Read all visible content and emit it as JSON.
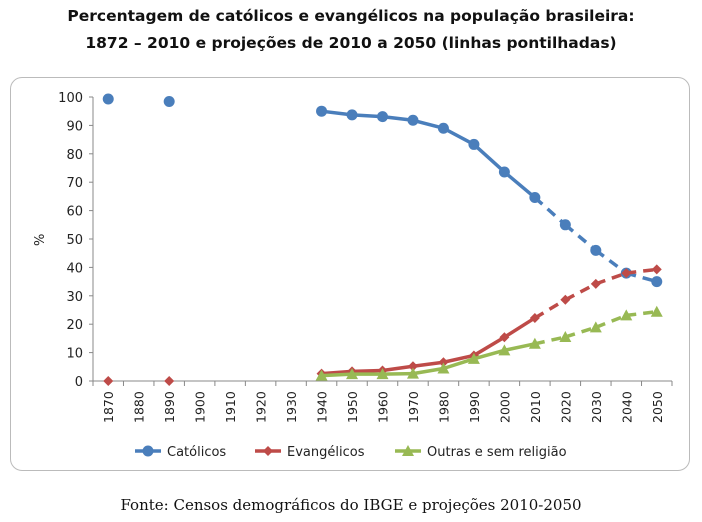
{
  "title_line1": "Percentagem de católicos e evangélicos na população brasileira:",
  "title_line2": "1872 – 2010 e projeções de 2010 a 2050 (linhas pontilhadas)",
  "source": "Fonte: Censos demográficos do IBGE e projeções 2010-2050",
  "chart_data": {
    "type": "line",
    "title": "Percentagem de católicos e evangélicos na população brasileira: 1872 – 2010 e projeções de 2010 a 2050 (linhas pontilhadas)",
    "ylabel": "%",
    "ylim": [
      0,
      100
    ],
    "yticks": [
      0,
      10,
      20,
      30,
      40,
      50,
      60,
      70,
      80,
      90,
      100
    ],
    "categories": [
      "1870",
      "1880",
      "1890",
      "1900",
      "1910",
      "1920",
      "1930",
      "1940",
      "1950",
      "1960",
      "1970",
      "1980",
      "1990",
      "2000",
      "2010",
      "2020",
      "2030",
      "2040",
      "2050"
    ],
    "projection_start": "2010",
    "legend": "bottom",
    "series": [
      {
        "name": "Católicos",
        "color": "#4a7ebb",
        "marker": "circle",
        "values": [
          99.3,
          null,
          98.4,
          null,
          null,
          null,
          null,
          95.0,
          93.7,
          93.1,
          91.8,
          89.0,
          83.3,
          73.6,
          64.6,
          55,
          46,
          38,
          35
        ]
      },
      {
        "name": "Evangélicos",
        "color": "#be4b48",
        "marker": "diamond",
        "values": [
          0,
          null,
          0,
          null,
          null,
          null,
          null,
          2.6,
          3.4,
          3.7,
          5.2,
          6.6,
          9.0,
          15.4,
          22.2,
          28.6,
          34.2,
          38.0,
          39.3
        ]
      },
      {
        "name": "Outras e sem religião",
        "color": "#98b954",
        "marker": "triangle",
        "values": [
          null,
          null,
          null,
          null,
          null,
          null,
          null,
          1.9,
          2.4,
          2.4,
          2.6,
          4.4,
          7.8,
          10.8,
          13.1,
          15.5,
          18.9,
          23.1,
          24.4
        ]
      }
    ]
  }
}
